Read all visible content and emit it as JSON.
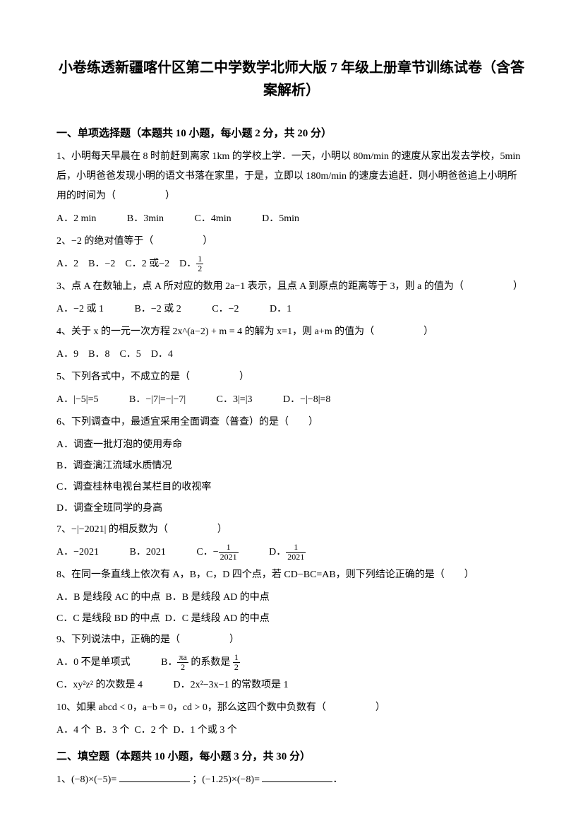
{
  "title": "小卷练透新疆喀什区第二中学数学北师大版 7 年级上册章节训练试卷（含答案解析）",
  "section1": {
    "header": "一、单项选择题（本题共 10 小题，每小题 2 分，共 20 分）",
    "q1": {
      "text": "1、小明每天早晨在 8 时前赶到离家 1km 的学校上学．一天，小明以 80m/min 的速度从家出发去学校，5min 后，小明爸爸发现小明的语文书落在家里，于是，立即以 180m/min 的速度去追赶．则小明爸爸追上小明所用的时间为（　　　　　）",
      "optA": "A．2 min",
      "optB": "B．3min",
      "optC": "C．4min",
      "optD": "D．5min"
    },
    "q2": {
      "text": "2、−2 的绝对值等于（　　　　　）",
      "optA": "A．2",
      "optB": "B．−2",
      "optC": "C．2 或−2",
      "optD_prefix": "D．",
      "optD_num": "1",
      "optD_den": "2"
    },
    "q3": {
      "text": "3、点 A 在数轴上，点 A 所对应的数用 2a−1 表示，且点 A 到原点的距离等于 3，则 a 的值为（　　　　　）",
      "optA": "A．−2 或 1",
      "optB": "B．−2 或 2",
      "optC": "C．−2",
      "optD": "D．1"
    },
    "q4": {
      "text": "4、关于 x 的一元一次方程 2x^(a−2) + m = 4 的解为 x=1，则 a+m 的值为（　　　　　）",
      "optA": "A．9",
      "optB": "B．8",
      "optC": "C．5",
      "optD": "D．4"
    },
    "q5": {
      "text": "5、下列各式中，不成立的是（　　　　　）",
      "optA": "A．|−5|=5",
      "optB": "B．−|7|=−|−7|",
      "optC": "C．3|=|3",
      "optD": "D．−|−8|=8"
    },
    "q6": {
      "text": "6、下列调查中，最适宜采用全面调查（普查）的是（　　）",
      "optA": "A．调查一批灯泡的使用寿命",
      "optB": "B．调查漓江流域水质情况",
      "optC": "C．调查桂林电视台某栏目的收视率",
      "optD": "D．调查全班同学的身高"
    },
    "q7": {
      "text": "7、−|−2021| 的相反数为（　　　　　）",
      "optA": "A．−2021",
      "optB": "B．2021",
      "optC_prefix": "C．−",
      "optC_num": "1",
      "optC_den": "2021",
      "optD_prefix": "D．",
      "optD_num": "1",
      "optD_den": "2021"
    },
    "q8": {
      "text": "8、在同一条直线上依次有 A，B，C，D 四个点，若 CD−BC=AB，则下列结论正确的是（　　）",
      "optA": "A．B 是线段 AC 的中点",
      "optB": "B．B 是线段 AD 的中点",
      "optC": "C．C 是线段 BD 的中点",
      "optD": "D．C 是线段 AD 的中点"
    },
    "q9": {
      "text": "9、下列说法中，正确的是（　　　　　）",
      "optA": "A．0 不是单项式",
      "optB_prefix": "B．",
      "optB_num": "πa",
      "optB_den": "2",
      "optB_suffix": " 的系数是 ",
      "optB_num2": "1",
      "optB_den2": "2",
      "optC": "C．xy²z² 的次数是 4",
      "optD": "D．2x²−3x−1 的常数项是 1"
    },
    "q10": {
      "text": "10、如果 abcd < 0，a−b = 0，cd > 0，那么这四个数中负数有（　　　　　）",
      "optA": "A．4 个",
      "optB": "B．3 个",
      "optC": "C．2 个",
      "optD": "D．1 个或 3 个"
    }
  },
  "section2": {
    "header": "二、填空题（本题共 10 小题，每小题 3 分，共 30 分）",
    "q1_part1": "1、(−8)×(−5)= ",
    "q1_part2": "；(−1.25)×(−8)= "
  }
}
